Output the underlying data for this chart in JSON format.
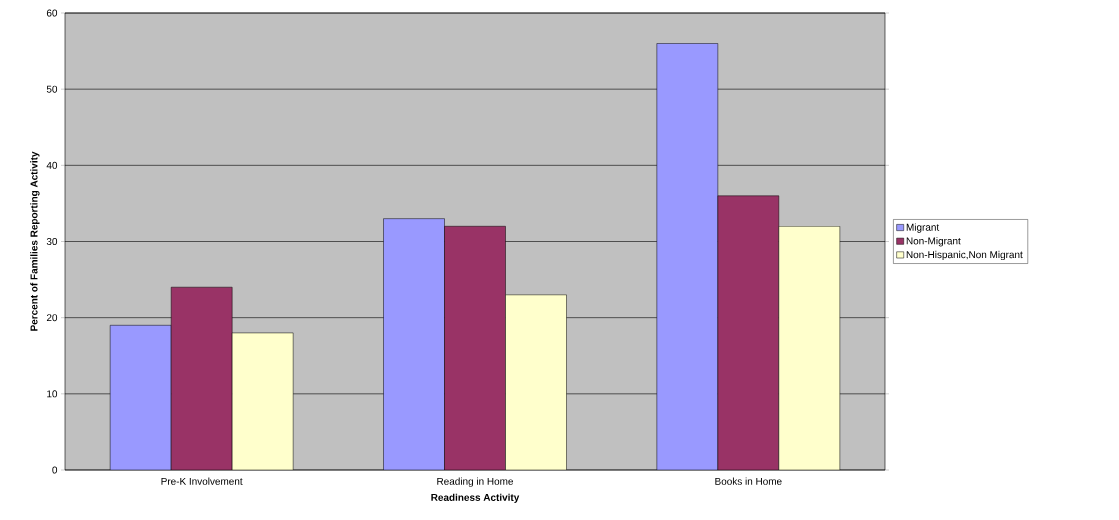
{
  "chart_data": {
    "type": "bar",
    "xlabel": "Readiness Activity",
    "ylabel": "Percent of Families Reporting Activity",
    "categories": [
      "Pre-K Involvement",
      "Reading in Home",
      "Books in Home"
    ],
    "series": [
      {
        "name": "Migrant",
        "color": "#9999ff",
        "values": [
          19,
          33,
          56
        ]
      },
      {
        "name": "Non-Migrant",
        "color": "#993366",
        "values": [
          24,
          32,
          36
        ]
      },
      {
        "name": "Non-Hispanic,Non Migrant",
        "color": "#ffffcc",
        "values": [
          18,
          23,
          32
        ]
      }
    ],
    "ylim": [
      0,
      60
    ],
    "yticks": [
      0,
      10,
      20,
      30,
      40,
      50,
      60
    ],
    "grid": "y",
    "legend": "right"
  }
}
